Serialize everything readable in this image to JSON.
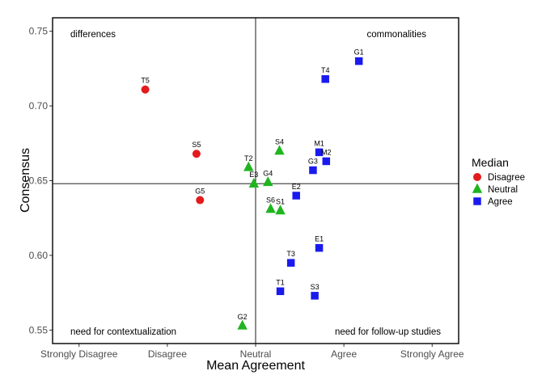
{
  "chart_data": {
    "type": "scatter",
    "xlabel": "Mean Agreement",
    "ylabel": "Consensus",
    "xlim": [
      0.7,
      5.3
    ],
    "ylim": [
      0.541,
      0.759
    ],
    "x_ticks": [
      1,
      2,
      3,
      4,
      5
    ],
    "x_tick_labels": [
      "Strongly Disagree",
      "Disagree",
      "Neutral",
      "Agree",
      "Strongly Agree"
    ],
    "y_ticks": [
      0.55,
      0.6,
      0.65,
      0.7,
      0.75
    ],
    "y_tick_labels": [
      "0.55",
      "0.60",
      "0.65",
      "0.70",
      "0.75"
    ],
    "grid": false,
    "reference_lines": {
      "x": 3.0,
      "y": 0.648
    },
    "quadrant_labels": {
      "top_left": "differences",
      "top_right": "commonalities",
      "bottom_left": "need for contextualization",
      "bottom_right": "need for follow-up studies"
    },
    "legend": {
      "title": "Median",
      "position": "right",
      "entries": [
        {
          "name": "Disagree",
          "color": "#e41a1c",
          "shape": "circle"
        },
        {
          "name": "Neutral",
          "color": "#1fb51f",
          "shape": "triangle"
        },
        {
          "name": "Agree",
          "color": "#1a1aee",
          "shape": "square"
        }
      ]
    },
    "series": [
      {
        "name": "Disagree",
        "points": [
          {
            "label": "T5",
            "x": 1.75,
            "y": 0.711
          },
          {
            "label": "S5",
            "x": 2.33,
            "y": 0.668
          },
          {
            "label": "G5",
            "x": 2.37,
            "y": 0.637
          }
        ]
      },
      {
        "name": "Neutral",
        "points": [
          {
            "label": "S4",
            "x": 3.27,
            "y": 0.67
          },
          {
            "label": "T2",
            "x": 2.92,
            "y": 0.659
          },
          {
            "label": "E3",
            "x": 2.98,
            "y": 0.648
          },
          {
            "label": "G4",
            "x": 3.14,
            "y": 0.649
          },
          {
            "label": "S6",
            "x": 3.17,
            "y": 0.631
          },
          {
            "label": "S1",
            "x": 3.28,
            "y": 0.63
          },
          {
            "label": "G2",
            "x": 2.85,
            "y": 0.553
          }
        ]
      },
      {
        "name": "Agree",
        "points": [
          {
            "label": "G1",
            "x": 4.17,
            "y": 0.73
          },
          {
            "label": "T4",
            "x": 3.79,
            "y": 0.718
          },
          {
            "label": "M1",
            "x": 3.72,
            "y": 0.669
          },
          {
            "label": "M2",
            "x": 3.8,
            "y": 0.663
          },
          {
            "label": "G3",
            "x": 3.65,
            "y": 0.657
          },
          {
            "label": "E2",
            "x": 3.46,
            "y": 0.64
          },
          {
            "label": "E1",
            "x": 3.72,
            "y": 0.605
          },
          {
            "label": "T3",
            "x": 3.4,
            "y": 0.595
          },
          {
            "label": "T1",
            "x": 3.28,
            "y": 0.576
          },
          {
            "label": "S3",
            "x": 3.67,
            "y": 0.573
          }
        ]
      }
    ]
  }
}
